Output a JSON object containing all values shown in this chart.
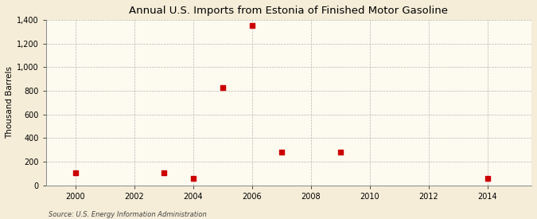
{
  "title": "Annual U.S. Imports from Estonia of Finished Motor Gasoline",
  "ylabel": "Thousand Barrels",
  "source": "Source: U.S. Energy Information Administration",
  "background_color": "#f5edd8",
  "plot_background_color": "#fdfaf0",
  "grid_color": "#b0b0b0",
  "dot_color": "#cc0000",
  "xlim": [
    1999,
    2015.5
  ],
  "ylim": [
    0,
    1400
  ],
  "xticks": [
    2000,
    2002,
    2004,
    2006,
    2008,
    2010,
    2012,
    2014
  ],
  "yticks": [
    0,
    200,
    400,
    600,
    800,
    1000,
    1200,
    1400
  ],
  "data_x": [
    2000,
    2003,
    2004,
    2005,
    2006,
    2007,
    2009,
    2014
  ],
  "data_y": [
    103,
    103,
    60,
    830,
    1355,
    278,
    278,
    55
  ],
  "dot_size": 14
}
